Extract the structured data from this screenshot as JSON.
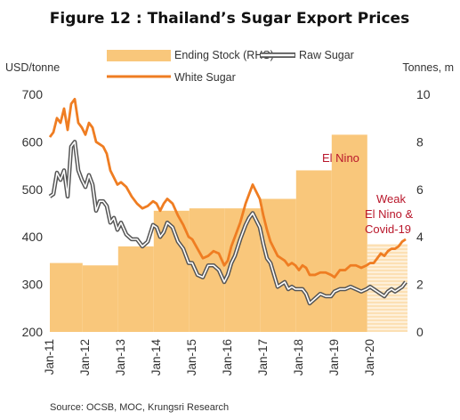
{
  "chart_data": {
    "type": "line",
    "title": "Figure 12 : Thailand’s Sugar Export Prices",
    "ylabel_left": "USD/tonne",
    "ylabel_right": "Tonnes, m",
    "ylim_left": [
      200,
      700
    ],
    "ylim_right": [
      0,
      10
    ],
    "yticks_left": [
      "200",
      "300",
      "400",
      "500",
      "600",
      "700"
    ],
    "yticks_right": [
      "0",
      "2",
      "4",
      "6",
      "8",
      "10"
    ],
    "xticks": [
      "Jan-11",
      "Jan-12",
      "Jan-13",
      "Jan-14",
      "Jan-15",
      "Jan-16",
      "Jan-17",
      "Jan-18",
      "Jan-19",
      "Jan-20"
    ],
    "xlim": [
      2011.0,
      2021.05
    ],
    "legend": [
      "Ending Stock (RHS)",
      "Raw Sugar",
      "White Sugar"
    ],
    "legend_position": "top",
    "annotations": [
      "El Nino",
      "Weak",
      "El Nino &",
      "Covid-19"
    ],
    "source": "Source: OCSB, MOC, Krungsri Research",
    "colors": {
      "ending_stock": "#f9c77b",
      "ending_stock_forecast": "#fce0b4",
      "white_sugar": "#ef7d22",
      "raw_sugar_outline": "#555555",
      "raw_sugar_fill": "#ffffff",
      "annotation": "#b9172b"
    },
    "series": [
      {
        "name": "Ending Stock (RHS)",
        "kind": "step-area",
        "axis": "right",
        "steps": [
          {
            "start": 2011.0,
            "end": 2011.92,
            "value": 2.9
          },
          {
            "start": 2011.92,
            "end": 2012.92,
            "value": 2.8
          },
          {
            "start": 2012.92,
            "end": 2013.92,
            "value": 3.6
          },
          {
            "start": 2013.92,
            "end": 2014.92,
            "value": 5.1
          },
          {
            "start": 2014.92,
            "end": 2015.92,
            "value": 5.2
          },
          {
            "start": 2015.92,
            "end": 2016.92,
            "value": 5.2
          },
          {
            "start": 2016.92,
            "end": 2017.92,
            "value": 5.6
          },
          {
            "start": 2017.92,
            "end": 2018.92,
            "value": 6.8
          },
          {
            "start": 2018.92,
            "end": 2019.92,
            "value": 8.3
          },
          {
            "start": 2019.92,
            "end": 2021.05,
            "value": 3.7,
            "forecast": true
          }
        ]
      },
      {
        "name": "Raw Sugar",
        "axis": "left",
        "x": [
          2011.0,
          2011.1,
          2011.2,
          2011.3,
          2011.4,
          2011.5,
          2011.6,
          2011.7,
          2011.8,
          2011.9,
          2012.0,
          2012.1,
          2012.2,
          2012.3,
          2012.4,
          2012.5,
          2012.6,
          2012.7,
          2012.8,
          2012.9,
          2013.0,
          2013.15,
          2013.3,
          2013.45,
          2013.6,
          2013.75,
          2013.9,
          2014.0,
          2014.1,
          2014.2,
          2014.3,
          2014.45,
          2014.6,
          2014.75,
          2014.9,
          2015.0,
          2015.15,
          2015.3,
          2015.45,
          2015.6,
          2015.75,
          2015.9,
          2016.0,
          2016.1,
          2016.2,
          2016.35,
          2016.5,
          2016.6,
          2016.7,
          2016.8,
          2016.9,
          2017.0,
          2017.1,
          2017.2,
          2017.3,
          2017.4,
          2017.5,
          2017.6,
          2017.7,
          2017.8,
          2017.9,
          2018.0,
          2018.1,
          2018.2,
          2018.3,
          2018.45,
          2018.6,
          2018.75,
          2018.9,
          2019.0,
          2019.15,
          2019.3,
          2019.45,
          2019.6,
          2019.75,
          2019.9,
          2020.0,
          2020.1,
          2020.2,
          2020.3,
          2020.4,
          2020.5,
          2020.6,
          2020.7,
          2020.8,
          2020.9,
          2021.0
        ],
        "values": [
          485,
          490,
          535,
          520,
          540,
          485,
          590,
          600,
          540,
          520,
          505,
          530,
          510,
          455,
          475,
          475,
          465,
          430,
          440,
          415,
          430,
          405,
          395,
          395,
          380,
          390,
          425,
          420,
          400,
          410,
          430,
          420,
          390,
          375,
          345,
          345,
          320,
          315,
          340,
          340,
          330,
          305,
          320,
          345,
          360,
          395,
          425,
          440,
          450,
          435,
          420,
          385,
          355,
          345,
          320,
          295,
          300,
          305,
          290,
          295,
          290,
          290,
          290,
          280,
          260,
          270,
          280,
          275,
          275,
          285,
          290,
          290,
          295,
          290,
          285,
          290,
          295,
          290,
          285,
          280,
          275,
          285,
          290,
          285,
          290,
          295,
          305
        ]
      },
      {
        "name": "White Sugar",
        "axis": "left",
        "x": [
          2011.0,
          2011.1,
          2011.2,
          2011.3,
          2011.4,
          2011.5,
          2011.6,
          2011.7,
          2011.8,
          2011.9,
          2012.0,
          2012.1,
          2012.2,
          2012.3,
          2012.4,
          2012.5,
          2012.6,
          2012.7,
          2012.8,
          2012.9,
          2013.0,
          2013.15,
          2013.3,
          2013.45,
          2013.6,
          2013.75,
          2013.9,
          2014.0,
          2014.1,
          2014.2,
          2014.3,
          2014.45,
          2014.6,
          2014.75,
          2014.9,
          2015.0,
          2015.15,
          2015.3,
          2015.45,
          2015.6,
          2015.75,
          2015.9,
          2016.0,
          2016.1,
          2016.2,
          2016.35,
          2016.5,
          2016.6,
          2016.7,
          2016.8,
          2016.9,
          2017.0,
          2017.1,
          2017.2,
          2017.3,
          2017.4,
          2017.5,
          2017.6,
          2017.7,
          2017.8,
          2017.9,
          2018.0,
          2018.1,
          2018.2,
          2018.3,
          2018.45,
          2018.6,
          2018.75,
          2018.9,
          2019.0,
          2019.15,
          2019.3,
          2019.45,
          2019.6,
          2019.75,
          2019.9,
          2020.0,
          2020.1,
          2020.2,
          2020.3,
          2020.4,
          2020.5,
          2020.6,
          2020.7,
          2020.8,
          2020.9,
          2021.0
        ],
        "values": [
          610,
          620,
          650,
          640,
          670,
          625,
          680,
          690,
          640,
          630,
          615,
          640,
          630,
          600,
          595,
          590,
          575,
          540,
          525,
          510,
          515,
          505,
          485,
          470,
          460,
          465,
          475,
          470,
          455,
          470,
          480,
          470,
          445,
          425,
          400,
          395,
          375,
          355,
          360,
          370,
          365,
          340,
          350,
          380,
          400,
          430,
          470,
          490,
          510,
          495,
          480,
          445,
          415,
          390,
          375,
          360,
          355,
          350,
          340,
          345,
          340,
          330,
          340,
          335,
          320,
          320,
          325,
          325,
          320,
          315,
          330,
          330,
          340,
          340,
          335,
          340,
          345,
          345,
          355,
          365,
          360,
          370,
          375,
          375,
          380,
          390,
          395
        ]
      }
    ]
  }
}
